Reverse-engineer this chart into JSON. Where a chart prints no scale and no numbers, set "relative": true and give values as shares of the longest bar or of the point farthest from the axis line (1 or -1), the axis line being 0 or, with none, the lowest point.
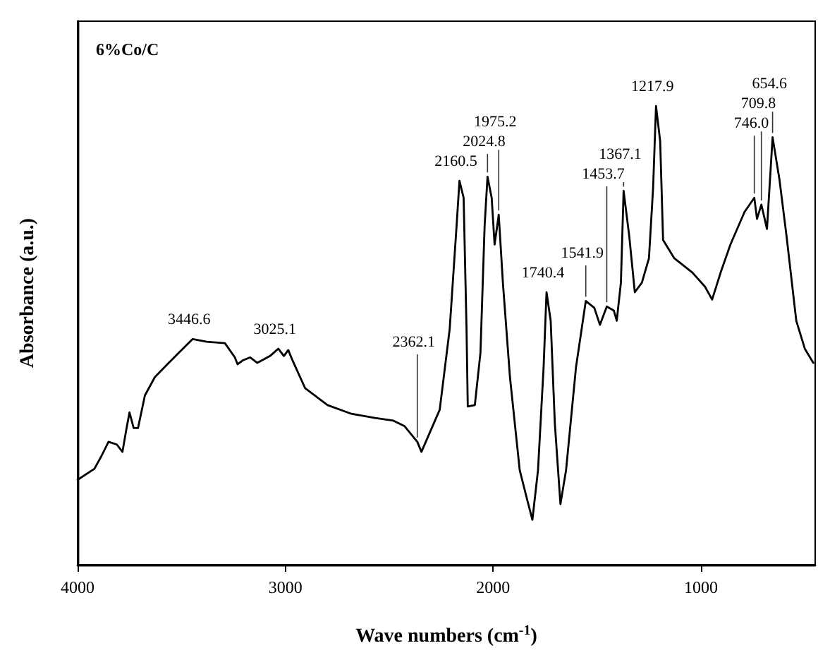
{
  "chart_data": {
    "type": "line",
    "relative": true,
    "title": "6%Co/C",
    "xlabel": "Wave numbers (cm$^{-1}$)",
    "ylabel": "Absorbance (a.u.)",
    "color": "#000000",
    "marker": "none",
    "line_style": "solid",
    "grid": false,
    "xlim": [
      4000,
      450
    ],
    "xticks": [
      4000,
      3000,
      2000,
      1000
    ],
    "x": [
      4000,
      3919,
      3885,
      3851,
      3811,
      3784,
      3764,
      3750,
      3730,
      3709,
      3676,
      3628,
      3561,
      3493,
      3446,
      3378,
      3291,
      3243,
      3230,
      3203,
      3169,
      3135,
      3074,
      3034,
      3007,
      2986,
      2966,
      2905,
      2797,
      2682,
      2568,
      2480,
      2426,
      2365,
      2345,
      2324,
      2257,
      2209,
      2176,
      2162,
      2142,
      2128,
      2122,
      2088,
      2061,
      2041,
      2027,
      2007,
      1993,
      1973,
      1953,
      1919,
      1872,
      1838,
      1811,
      1784,
      1757,
      1743,
      1723,
      1703,
      1676,
      1649,
      1601,
      1554,
      1513,
      1486,
      1453,
      1419,
      1405,
      1385,
      1372,
      1345,
      1318,
      1284,
      1250,
      1230,
      1216,
      1196,
      1182,
      1128,
      1041,
      980,
      946,
      905,
      858,
      790,
      743,
      730,
      709,
      682,
      655,
      622,
      588,
      541,
      500,
      459
    ],
    "values": [
      0.185,
      0.209,
      0.237,
      0.268,
      0.262,
      0.246,
      0.298,
      0.332,
      0.298,
      0.298,
      0.369,
      0.409,
      0.44,
      0.471,
      0.492,
      0.486,
      0.483,
      0.452,
      0.437,
      0.446,
      0.452,
      0.44,
      0.455,
      0.471,
      0.455,
      0.468,
      0.446,
      0.385,
      0.348,
      0.329,
      0.32,
      0.314,
      0.302,
      0.268,
      0.246,
      0.268,
      0.338,
      0.514,
      0.738,
      0.837,
      0.8,
      0.514,
      0.345,
      0.348,
      0.462,
      0.738,
      0.846,
      0.8,
      0.698,
      0.763,
      0.615,
      0.409,
      0.206,
      0.145,
      0.098,
      0.206,
      0.431,
      0.594,
      0.532,
      0.308,
      0.132,
      0.206,
      0.431,
      0.575,
      0.56,
      0.523,
      0.563,
      0.554,
      0.532,
      0.615,
      0.815,
      0.717,
      0.594,
      0.615,
      0.668,
      0.822,
      1,
      0.923,
      0.708,
      0.668,
      0.637,
      0.606,
      0.578,
      0.637,
      0.698,
      0.769,
      0.8,
      0.754,
      0.785,
      0.732,
      0.932,
      0.84,
      0.717,
      0.532,
      0.471,
      0.44
    ],
    "annotations": [
      {
        "text": "3446.6",
        "x": 3446,
        "y": 0.492
      },
      {
        "text": "3025.1",
        "x": 3034,
        "y": 0.471
      },
      {
        "text": "2362.1",
        "x": 2365,
        "y": 0.268
      },
      {
        "text": "2160.5",
        "x": 2162,
        "y": 0.837
      },
      {
        "text": "2024.8",
        "x": 2027,
        "y": 0.846
      },
      {
        "text": "1975.2",
        "x": 1973,
        "y": 0.763
      },
      {
        "text": "1740.4",
        "x": 1743,
        "y": 0.594
      },
      {
        "text": "1541.9",
        "x": 1554,
        "y": 0.575
      },
      {
        "text": "1453.7",
        "x": 1453,
        "y": 0.563
      },
      {
        "text": "1367.1",
        "x": 1372,
        "y": 0.815
      },
      {
        "text": "1217.9",
        "x": 1216,
        "y": 1
      },
      {
        "text": "746.0",
        "x": 743,
        "y": 0.8
      },
      {
        "text": "709.8",
        "x": 709,
        "y": 0.785
      },
      {
        "text": "654.6",
        "x": 655,
        "y": 0.932
      }
    ]
  }
}
